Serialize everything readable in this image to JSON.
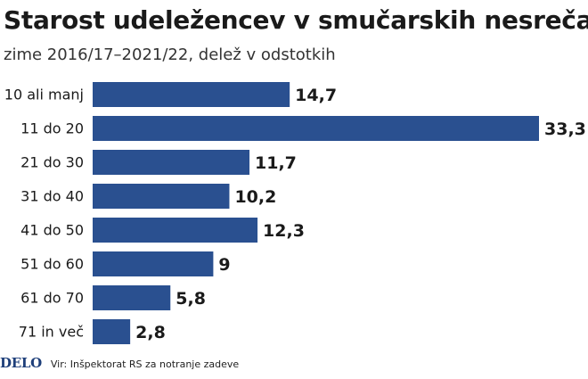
{
  "title": "Starost udeležencev v smučarskih nesrečah",
  "subtitle": "zime 2016/17–2021/22, delež v odstotkih",
  "colors": {
    "bar": "#2a5090",
    "text": "#1a1a1a",
    "brand": "#1e3f7a"
  },
  "chart_data": {
    "type": "bar",
    "orientation": "horizontal",
    "title": "Starost udeležencev v smučarskih nesrečah",
    "subtitle": "zime 2016/17–2021/22, delež v odstotkih",
    "categories": [
      "10 ali manj",
      "11 do 20",
      "21 do 30",
      "31 do 40",
      "41 do 50",
      "51 do 60",
      "61 do 70",
      "71 in več"
    ],
    "values": [
      14.7,
      33.3,
      11.7,
      10.2,
      12.3,
      9,
      5.8,
      2.8
    ],
    "value_labels": [
      "14,7",
      "33,3",
      "11,7",
      "10,2",
      "12,3",
      "9",
      "5,8",
      "2,8"
    ],
    "xlim": [
      0,
      33.3
    ],
    "grid": false,
    "legend": "none"
  },
  "footer": {
    "brand": "DELO",
    "source": "Vir: Inšpektorat RS za notranje zadeve"
  }
}
